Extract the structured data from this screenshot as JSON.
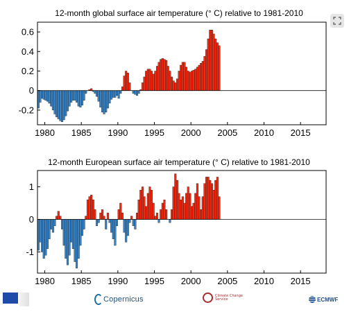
{
  "colors": {
    "warm": "#f32a10",
    "cool": "#3a85c8",
    "edge": "#111111",
    "frame": "#000000"
  },
  "icons": {
    "expand": "expand-icon"
  },
  "footer": {
    "eu_flag_caption": "Programme of the European Union",
    "copernicus": "Copernicus",
    "c3s": "Climate Change Service",
    "ecmwf": "ECMWF"
  },
  "chart_data": [
    {
      "type": "bar",
      "title": "12-month global surface air temperature (° C) relative to 1981-2010",
      "xlabel": "",
      "ylabel": "",
      "xlim": [
        1979,
        2018.5
      ],
      "ylim": [
        -0.35,
        0.7
      ],
      "xticks": [
        1980,
        1985,
        1990,
        1995,
        2000,
        2005,
        2010,
        2015
      ],
      "yticks": [
        -0.2,
        0,
        0.2,
        0.4,
        0.6
      ],
      "ytick_labels": [
        "-0.2",
        "0",
        "0.2",
        "0.4",
        "0.6"
      ],
      "x_start": 1979.0,
      "x_step": 0.25,
      "values": [
        -0.18,
        -0.12,
        -0.08,
        -0.09,
        -0.1,
        -0.11,
        -0.13,
        -0.16,
        -0.2,
        -0.24,
        -0.27,
        -0.29,
        -0.31,
        -0.32,
        -0.3,
        -0.26,
        -0.21,
        -0.16,
        -0.12,
        -0.1,
        -0.1,
        -0.12,
        -0.16,
        -0.17,
        -0.15,
        -0.1,
        -0.03,
        0.0,
        0.01,
        0.02,
        -0.01,
        -0.03,
        -0.06,
        -0.11,
        -0.17,
        -0.22,
        -0.24,
        -0.22,
        -0.18,
        -0.13,
        -0.09,
        -0.07,
        -0.07,
        -0.05,
        -0.08,
        -0.03,
        0.04,
        0.15,
        0.2,
        0.18,
        0.08,
        0.0,
        -0.03,
        -0.04,
        -0.05,
        -0.03,
        0.01,
        0.08,
        0.14,
        0.2,
        0.22,
        0.22,
        0.2,
        0.17,
        0.2,
        0.25,
        0.29,
        0.32,
        0.33,
        0.32,
        0.31,
        0.25,
        0.2,
        0.14,
        0.1,
        0.08,
        0.12,
        0.2,
        0.26,
        0.29,
        0.29,
        0.24,
        0.2,
        0.19,
        0.2,
        0.21,
        0.22,
        0.24,
        0.26,
        0.28,
        0.3,
        0.35,
        0.42,
        0.53,
        0.62,
        0.62,
        0.58,
        0.53,
        0.49,
        0.46
      ],
      "note": "values are quarterly samples 1979.0–2018.0 read from the plot"
    },
    {
      "type": "bar",
      "title": "12-month European surface air temperature (° C) relative to 1981-2010",
      "xlabel": "",
      "ylabel": "",
      "xlim": [
        1979,
        2018.5
      ],
      "ylim": [
        -1.65,
        1.5
      ],
      "xticks": [
        1980,
        1985,
        1990,
        1995,
        2000,
        2005,
        2010,
        2015
      ],
      "yticks": [
        -1,
        0,
        1
      ],
      "ytick_labels": [
        "-1",
        "0",
        "1"
      ],
      "x_start": 1979.0,
      "x_step": 0.25,
      "values": [
        -0.95,
        -0.7,
        -1.0,
        -1.2,
        -1.1,
        -0.9,
        -0.6,
        -0.3,
        -0.4,
        -0.2,
        0.1,
        0.25,
        0.1,
        -0.3,
        -0.8,
        -1.2,
        -1.4,
        -1.1,
        -0.7,
        -0.9,
        -1.3,
        -1.5,
        -1.2,
        -0.8,
        -0.5,
        -0.3,
        0.1,
        0.6,
        0.7,
        0.75,
        0.6,
        0.3,
        -0.2,
        -0.1,
        0.2,
        0.3,
        0.1,
        -0.3,
        0.2,
        -0.1,
        -0.4,
        -0.6,
        -0.8,
        -0.2,
        0.3,
        0.5,
        0.2,
        -0.4,
        -0.7,
        -0.5,
        -0.1,
        0.1,
        -0.2,
        -0.3,
        0.2,
        0.6,
        0.9,
        1.0,
        0.7,
        0.4,
        0.8,
        1.0,
        0.9,
        0.5,
        0.1,
        0.2,
        -0.1,
        0.3,
        0.5,
        0.6,
        0.3,
        0.0,
        -0.1,
        0.3,
        1.0,
        1.4,
        1.2,
        0.8,
        0.6,
        0.7,
        0.5,
        0.8,
        1.0,
        0.8,
        0.4,
        0.5,
        0.8,
        1.1,
        0.7,
        0.3,
        0.7,
        1.1,
        1.3,
        1.3,
        1.2,
        1.1,
        0.9,
        1.2,
        1.3,
        0.7
      ],
      "note": "values are quarterly samples 1979.0–2018.0 read from the plot"
    }
  ]
}
